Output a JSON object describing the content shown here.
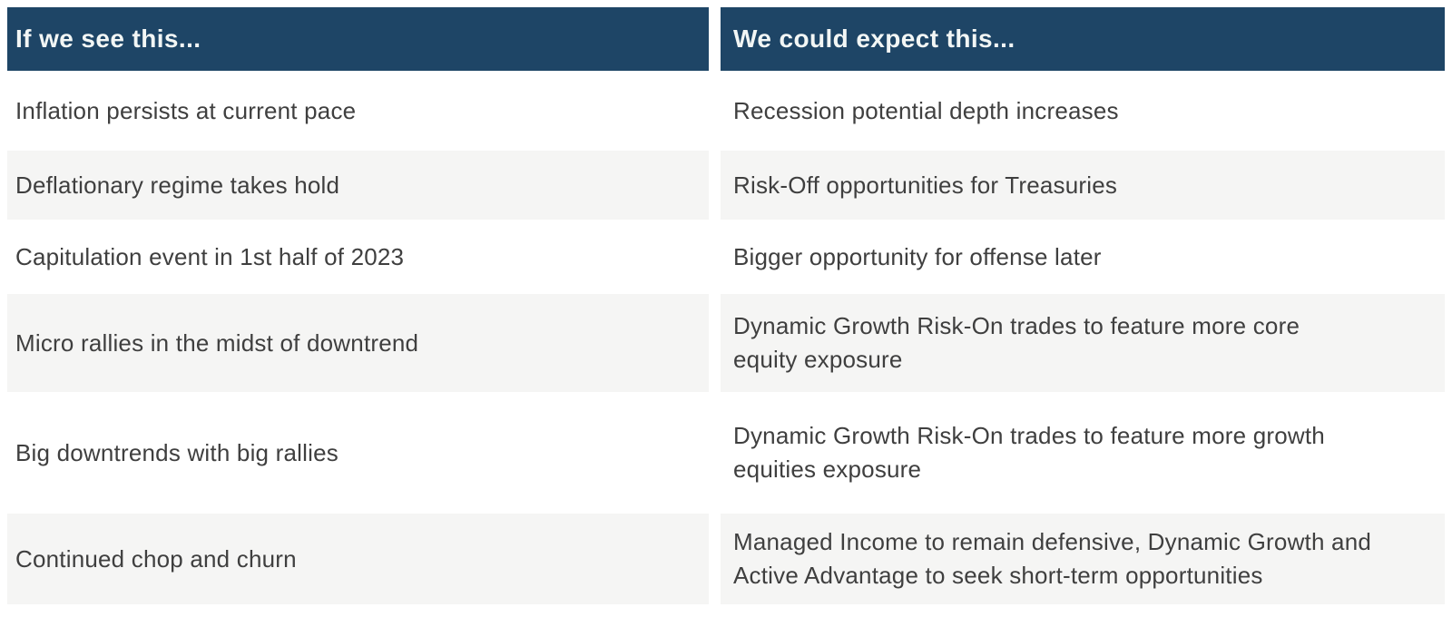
{
  "colors": {
    "header_background": "#1e4566",
    "header_text": "#f2f6f5",
    "row_alt_background": "#f5f5f4",
    "body_text": "#3f3f3f"
  },
  "table": {
    "headers": {
      "see": "If we see this...",
      "expect": "We could expect this..."
    },
    "rows": [
      {
        "see": "Inflation persists at current pace",
        "expect": "Recession potential depth increases"
      },
      {
        "see": "Deflationary regime takes hold",
        "expect": "Risk-Off opportunities for Treasuries"
      },
      {
        "see": "Capitulation event in 1st half of 2023",
        "expect": "Bigger opportunity for offense later"
      },
      {
        "see": "Micro rallies in the midst of downtrend",
        "expect": "Dynamic Growth Risk-On trades to feature more core\nequity exposure"
      },
      {
        "see": "Big downtrends with big rallies",
        "expect": "Dynamic Growth Risk-On trades to feature more growth\nequities exposure"
      },
      {
        "see": "Continued chop and churn",
        "expect": "Managed Income to remain defensive, Dynamic Growth and\nActive Advantage to seek short-term opportunities"
      }
    ]
  }
}
